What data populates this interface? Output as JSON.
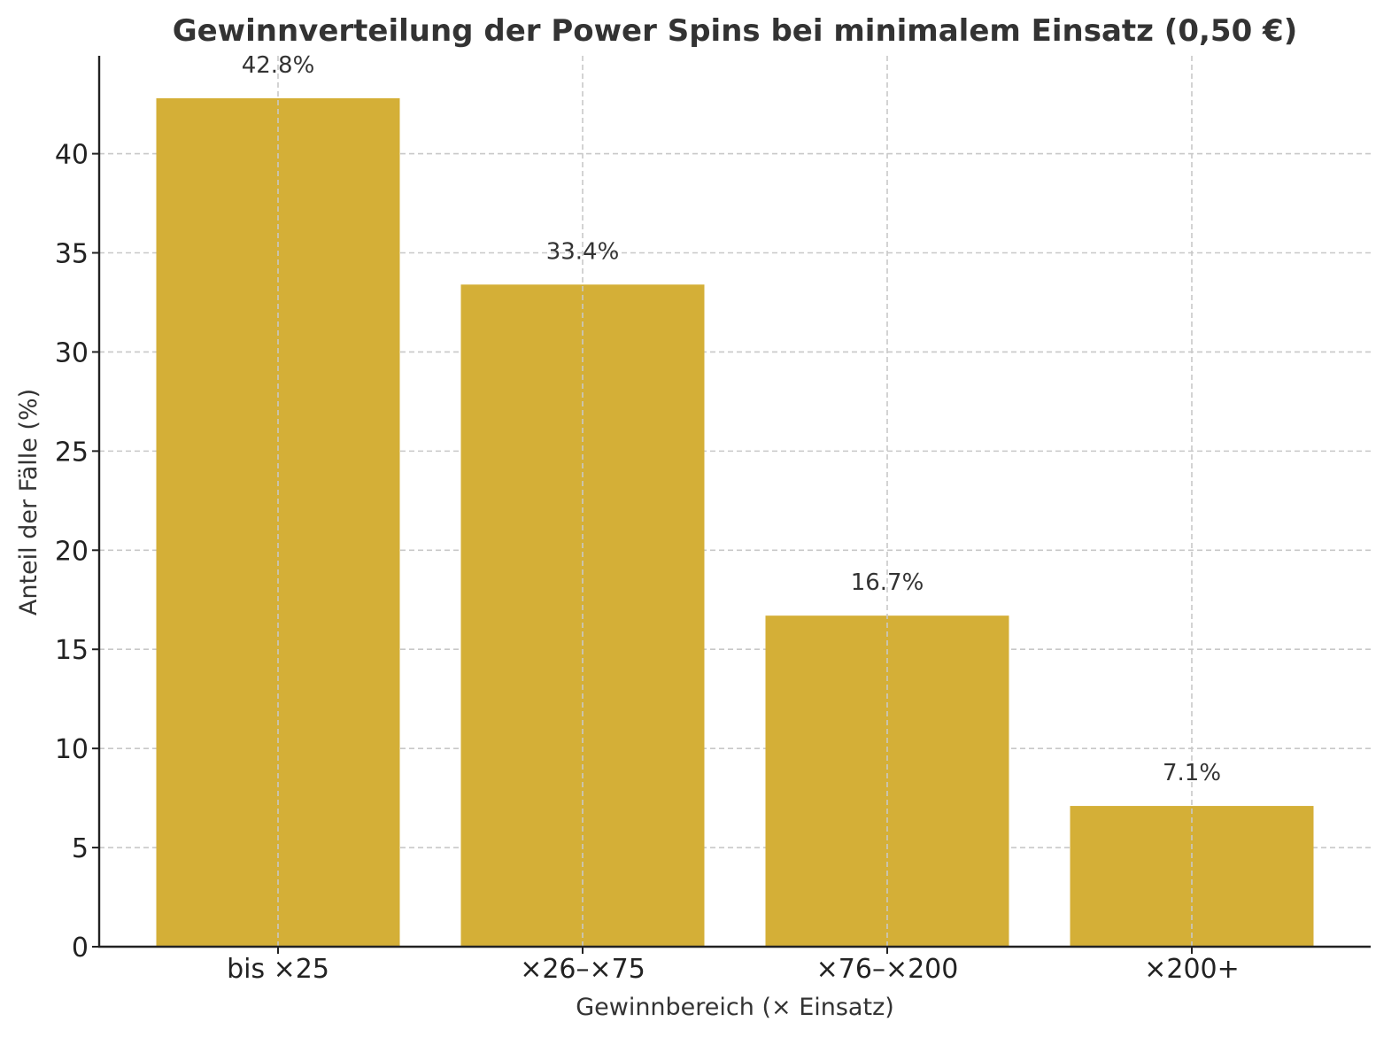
{
  "chart_data": {
    "type": "bar",
    "title": "Gewinnverteilung der Power Spins bei minimalem Einsatz (0,50 €)",
    "xlabel": "Gewinnbereich (× Einsatz)",
    "ylabel": "Anteil der Fälle (%)",
    "categories": [
      "bis ×25",
      "×26–×75",
      "×76–×200",
      "×200+"
    ],
    "values": [
      42.8,
      33.4,
      16.7,
      7.1
    ],
    "data_labels": [
      "42.8%",
      "33.4%",
      "16.7%",
      "7.1%"
    ],
    "ylim": [
      0,
      44.94
    ],
    "yticks": [
      0,
      5,
      10,
      15,
      20,
      25,
      30,
      35,
      40
    ],
    "grid": true,
    "bar_color": "#d4af37"
  }
}
